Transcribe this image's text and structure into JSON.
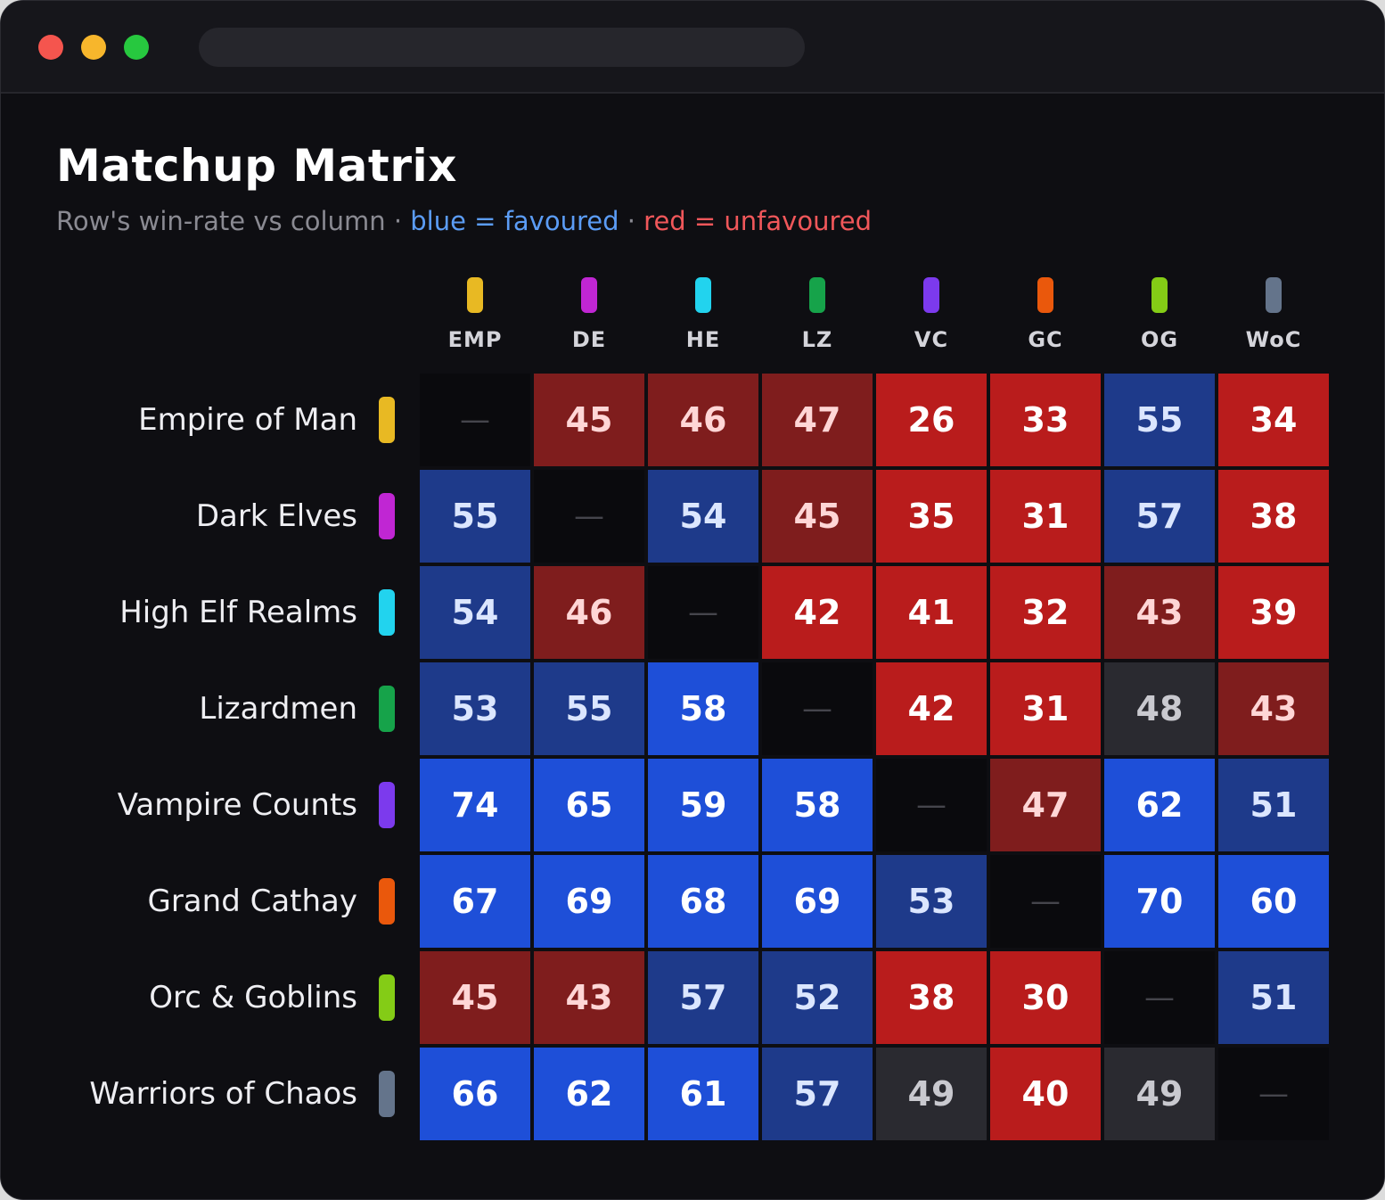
{
  "window": {
    "traffic_lights": [
      "#f5554e",
      "#f7b62c",
      "#27c83f"
    ]
  },
  "header": {
    "title": "Matchup Matrix",
    "subtitle_prefix": "Row's win-rate vs column",
    "separator": " · ",
    "subtitle_blue": "blue = favoured",
    "subtitle_red": "red = unfavoured"
  },
  "chart_data": {
    "type": "heatmap",
    "title": "Matchup Matrix",
    "diagonal_symbol": "—",
    "columns": [
      {
        "label": "EMP",
        "color": "#e8b923"
      },
      {
        "label": "DE",
        "color": "#c026d3"
      },
      {
        "label": "HE",
        "color": "#22d3ee"
      },
      {
        "label": "LZ",
        "color": "#16a34a"
      },
      {
        "label": "VC",
        "color": "#7c3aed"
      },
      {
        "label": "GC",
        "color": "#ea580c"
      },
      {
        "label": "OG",
        "color": "#84cc16"
      },
      {
        "label": "WoC",
        "color": "#64748b"
      }
    ],
    "rows": [
      {
        "label": "Empire of Man",
        "color": "#e8b923"
      },
      {
        "label": "Dark Elves",
        "color": "#c026d3"
      },
      {
        "label": "High Elf Realms",
        "color": "#22d3ee"
      },
      {
        "label": "Lizardmen",
        "color": "#16a34a"
      },
      {
        "label": "Vampire Counts",
        "color": "#7c3aed"
      },
      {
        "label": "Grand Cathay",
        "color": "#ea580c"
      },
      {
        "label": "Orc & Goblins",
        "color": "#84cc16"
      },
      {
        "label": "Warriors of Chaos",
        "color": "#64748b"
      }
    ],
    "values": [
      [
        null,
        45,
        46,
        47,
        26,
        33,
        55,
        34
      ],
      [
        55,
        null,
        54,
        45,
        35,
        31,
        57,
        38
      ],
      [
        54,
        46,
        null,
        42,
        41,
        32,
        43,
        39
      ],
      [
        53,
        55,
        58,
        null,
        42,
        31,
        48,
        43
      ],
      [
        74,
        65,
        59,
        58,
        null,
        47,
        62,
        51
      ],
      [
        67,
        69,
        68,
        69,
        53,
        null,
        70,
        60
      ],
      [
        45,
        43,
        57,
        52,
        38,
        30,
        null,
        51
      ],
      [
        66,
        62,
        61,
        57,
        49,
        40,
        49,
        null
      ]
    ],
    "color_scale": {
      "favoured": "#1e4fd8",
      "slightly_favoured": "#1e3a8a",
      "neutral": "#2a2a30",
      "slightly_unfavoured": "#7f1d1d",
      "unfavoured": "#b91c1c"
    }
  }
}
